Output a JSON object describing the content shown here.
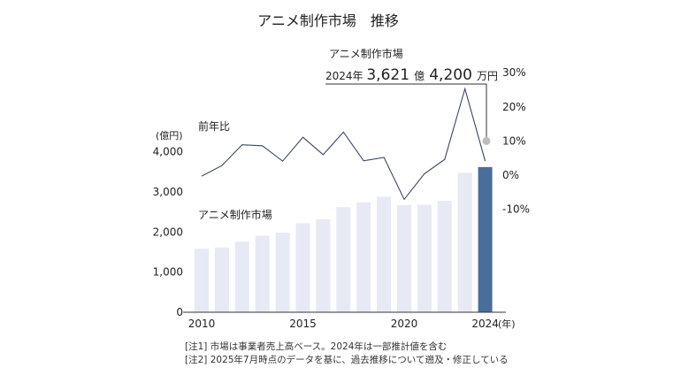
{
  "chart_data": {
    "type": "bar",
    "title": "アニメ制作市場　推移",
    "categories": [
      "2010",
      "2011",
      "2012",
      "2013",
      "2014",
      "2015",
      "2016",
      "2017",
      "2018",
      "2019",
      "2020",
      "2021",
      "2022",
      "2023",
      "2024"
    ],
    "x_tick_labels": [
      "2010",
      "2015",
      "2020",
      "2024"
    ],
    "x_unit": "(年)",
    "series": [
      {
        "name": "アニメ制作市場",
        "type": "bar",
        "axis": "left",
        "values": [
          1585,
          1615,
          1760,
          1910,
          1985,
          2220,
          2315,
          2620,
          2740,
          2880,
          2670,
          2680,
          2780,
          3480,
          3621.42
        ],
        "colors": {
          "bar": "#e7e9f4",
          "highlight": "#4a6e9b"
        }
      },
      {
        "name": "前年比",
        "type": "line",
        "axis": "right",
        "values": [
          -0.3,
          2.8,
          8.9,
          8.6,
          4.1,
          11.1,
          6.0,
          12.6,
          4.2,
          5.2,
          -7.1,
          0.4,
          4.6,
          25.3,
          4.1
        ],
        "color": "#3a4660"
      }
    ],
    "y_left": {
      "unit": "(億円)",
      "ylim": [
        0,
        4200
      ],
      "ticks": [
        0,
        1000,
        2000,
        3000,
        4000
      ],
      "tick_labels": [
        "0",
        "1,000",
        "2,000",
        "3,000",
        "4,000"
      ]
    },
    "y_right": {
      "ylim": [
        -10,
        30
      ],
      "ticks": [
        -10,
        0,
        10,
        20,
        30
      ],
      "tick_labels": [
        "-10%",
        "0%",
        "10%",
        "20%",
        "30%"
      ]
    },
    "annotation": {
      "title": "アニメ制作市場",
      "value_parts": [
        "2024年 ",
        "3,621",
        "億",
        "4,200",
        "万円"
      ],
      "marker_value": 10
    },
    "grid": false,
    "legend": "inline labels"
  },
  "notes": [
    "[注1] 市場は事業者売上高ベース。2024年は一部推計値を含む",
    "[注2] 2025年7月時点のデータを基に、過去推移について遡及・修正している"
  ]
}
